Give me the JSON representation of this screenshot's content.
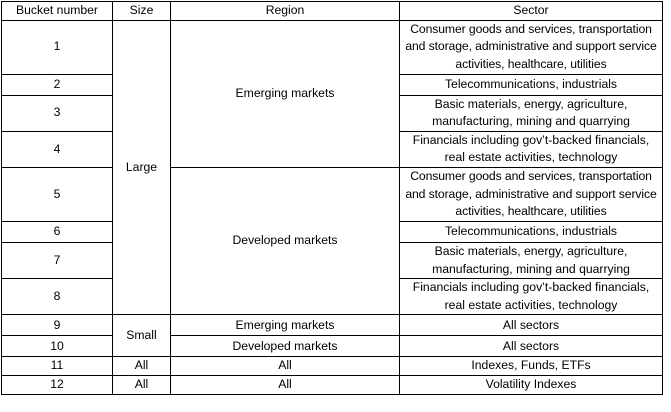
{
  "table": {
    "headers": {
      "bucket": "Bucket number",
      "size": "Size",
      "region": "Region",
      "sector": "Sector"
    },
    "size_groups": {
      "large": "Large",
      "small": "Small",
      "all": "All"
    },
    "regions": {
      "emerging": "Emerging markets",
      "developed": "Developed markets",
      "all": "All"
    },
    "sectors": {
      "consumer": "Consumer goods and services, transportation and storage, administrative and support service activities, healthcare, utilities",
      "telecom": "Telecommunications, industrials",
      "basic": "Basic materials, energy, agriculture, manufacturing, mining and quarrying",
      "financials": "Financials including gov’t-backed financials, real estate activities, technology",
      "all_sectors": "All sectors",
      "indexes": "Indexes, Funds, ETFs",
      "volatility": "Volatility Indexes"
    },
    "rows": [
      {
        "bucket": "1"
      },
      {
        "bucket": "2"
      },
      {
        "bucket": "3"
      },
      {
        "bucket": "4"
      },
      {
        "bucket": "5"
      },
      {
        "bucket": "6"
      },
      {
        "bucket": "7"
      },
      {
        "bucket": "8"
      },
      {
        "bucket": "9"
      },
      {
        "bucket": "10"
      },
      {
        "bucket": "11"
      },
      {
        "bucket": "12"
      }
    ]
  }
}
